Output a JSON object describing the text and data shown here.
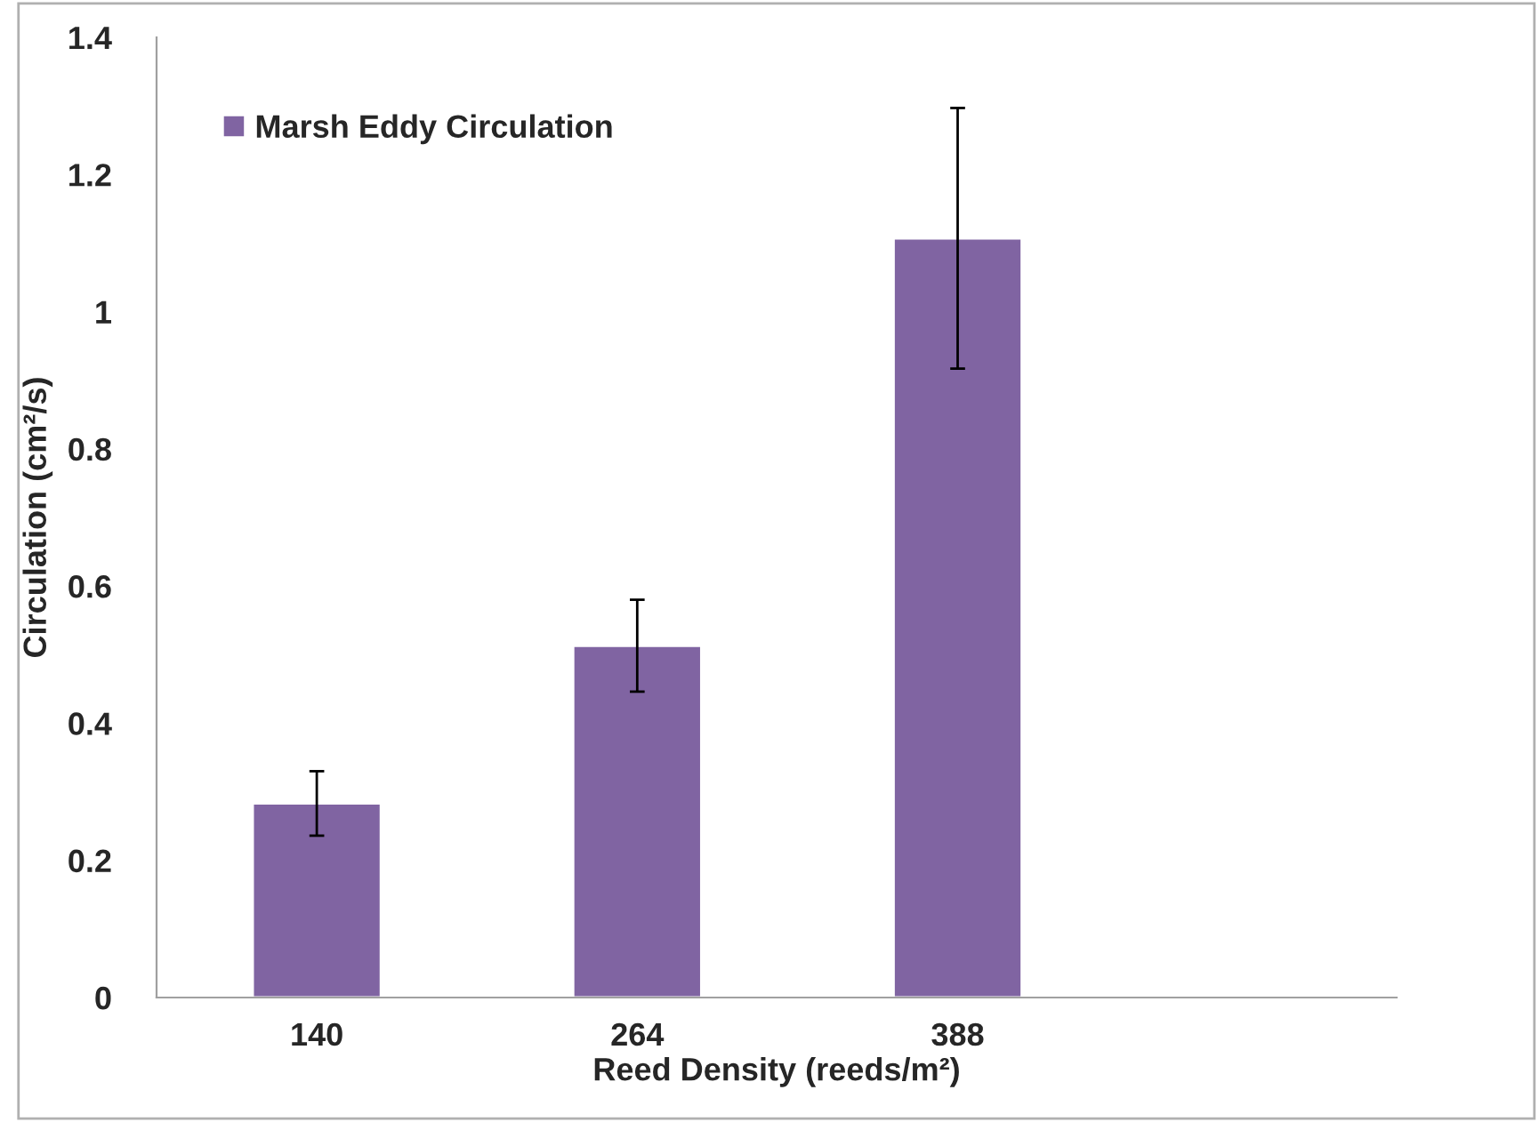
{
  "chart_data": {
    "type": "bar",
    "xlabel": "Reed Density (reeds/m²)",
    "ylabel": "Circulation (cm²/s)",
    "categories": [
      "140",
      "264",
      "388"
    ],
    "series": [
      {
        "name": "Marsh Eddy Circulation",
        "color": "#8064a2",
        "values": [
          0.283,
          0.513,
          1.107
        ],
        "errors": [
          0.047,
          0.067,
          0.19
        ]
      }
    ],
    "ylim": [
      0,
      1.4
    ],
    "yticks": [
      0,
      {
        "value": 0.2,
        "label": "0.2"
      },
      {
        "value": 0.4,
        "label": "0.4"
      },
      {
        "value": 0.6,
        "label": "0.6"
      },
      {
        "value": 0.8,
        "label": "0.8"
      },
      1,
      {
        "value": 1.2,
        "label": "1.2"
      },
      {
        "value": 1.4,
        "label": "1.4"
      }
    ],
    "grid": false,
    "legend": "top left"
  }
}
